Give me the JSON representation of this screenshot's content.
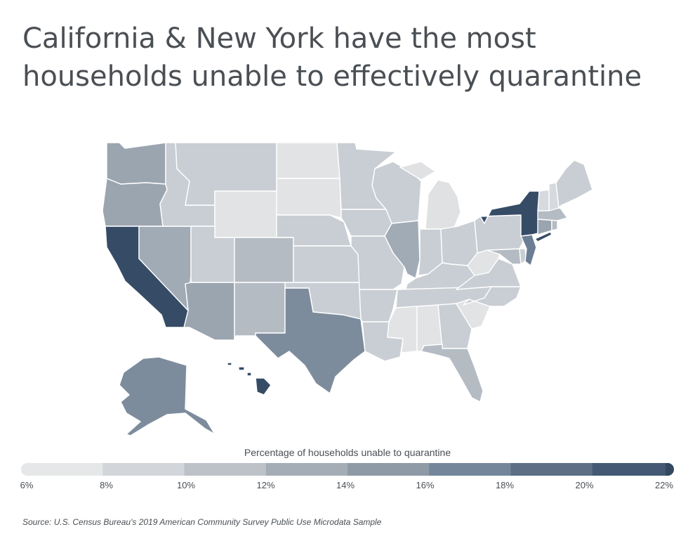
{
  "title": {
    "line1": "California & New York have the most",
    "line2": "households unable to effectively quarantine"
  },
  "legend": {
    "title": "Percentage of households unable to quarantine",
    "ticks": [
      "6%",
      "8%",
      "10%",
      "12%",
      "14%",
      "16%",
      "18%",
      "20%",
      "22%"
    ],
    "colors": [
      "#e6e7e8",
      "#d2d5d9",
      "#bcc2c8",
      "#a4adb6",
      "#8e9aa6",
      "#74879a",
      "#5c6f85",
      "#445a74",
      "#34495f"
    ]
  },
  "source": "Source:  U.S. Census Bureau's 2019 American Community Survey Public Use Microdata Sample",
  "states": {
    "washington": "#9ba5b0",
    "oregon": "#9ba5b0",
    "california": "#364c66",
    "nevada": "#a1abb6",
    "idaho": "#c9ced4",
    "montana": "#c9ced4",
    "wyoming": "#e1e3e5",
    "utah": "#c9ced4",
    "arizona": "#9ba5b0",
    "colorado": "#b4bbc3",
    "new-mexico": "#b4bbc3",
    "north-dakota": "#e1e3e5",
    "south-dakota": "#e1e3e5",
    "nebraska": "#c9ced4",
    "kansas": "#c9ced4",
    "oklahoma": "#c9ced4",
    "texas": "#7d8c9c",
    "minnesota": "#c9ced4",
    "iowa": "#c9ced4",
    "missouri": "#c9ced4",
    "arkansas": "#c9ced4",
    "louisiana": "#c9ced4",
    "wisconsin": "#c9ced4",
    "illinois": "#a1abb6",
    "michigan": "#dfe1e3",
    "indiana": "#c9ced4",
    "ohio": "#c9ced4",
    "kentucky": "#c9ced4",
    "tennessee": "#c9ced4",
    "mississippi": "#e1e3e5",
    "alabama": "#e1e3e5",
    "georgia": "#c9ced4",
    "florida": "#b4bbc3",
    "south-carolina": "#e1e3e5",
    "north-carolina": "#c9ced4",
    "virginia": "#c9ced4",
    "west-virginia": "#e1e3e5",
    "maryland": "#b4bbc3",
    "delaware": "#c9ced4",
    "pennsylvania": "#c9ced4",
    "new-jersey": "#6b7e94",
    "new-york": "#364c66",
    "connecticut": "#9ba5b0",
    "rhode-island": "#b4bbc3",
    "massachusetts": "#b4bbc3",
    "vermont": "#d6d9dd",
    "new-hampshire": "#d6d9dd",
    "maine": "#c9ced4",
    "alaska": "#7d8c9c",
    "hawaii": "#364c66"
  }
}
